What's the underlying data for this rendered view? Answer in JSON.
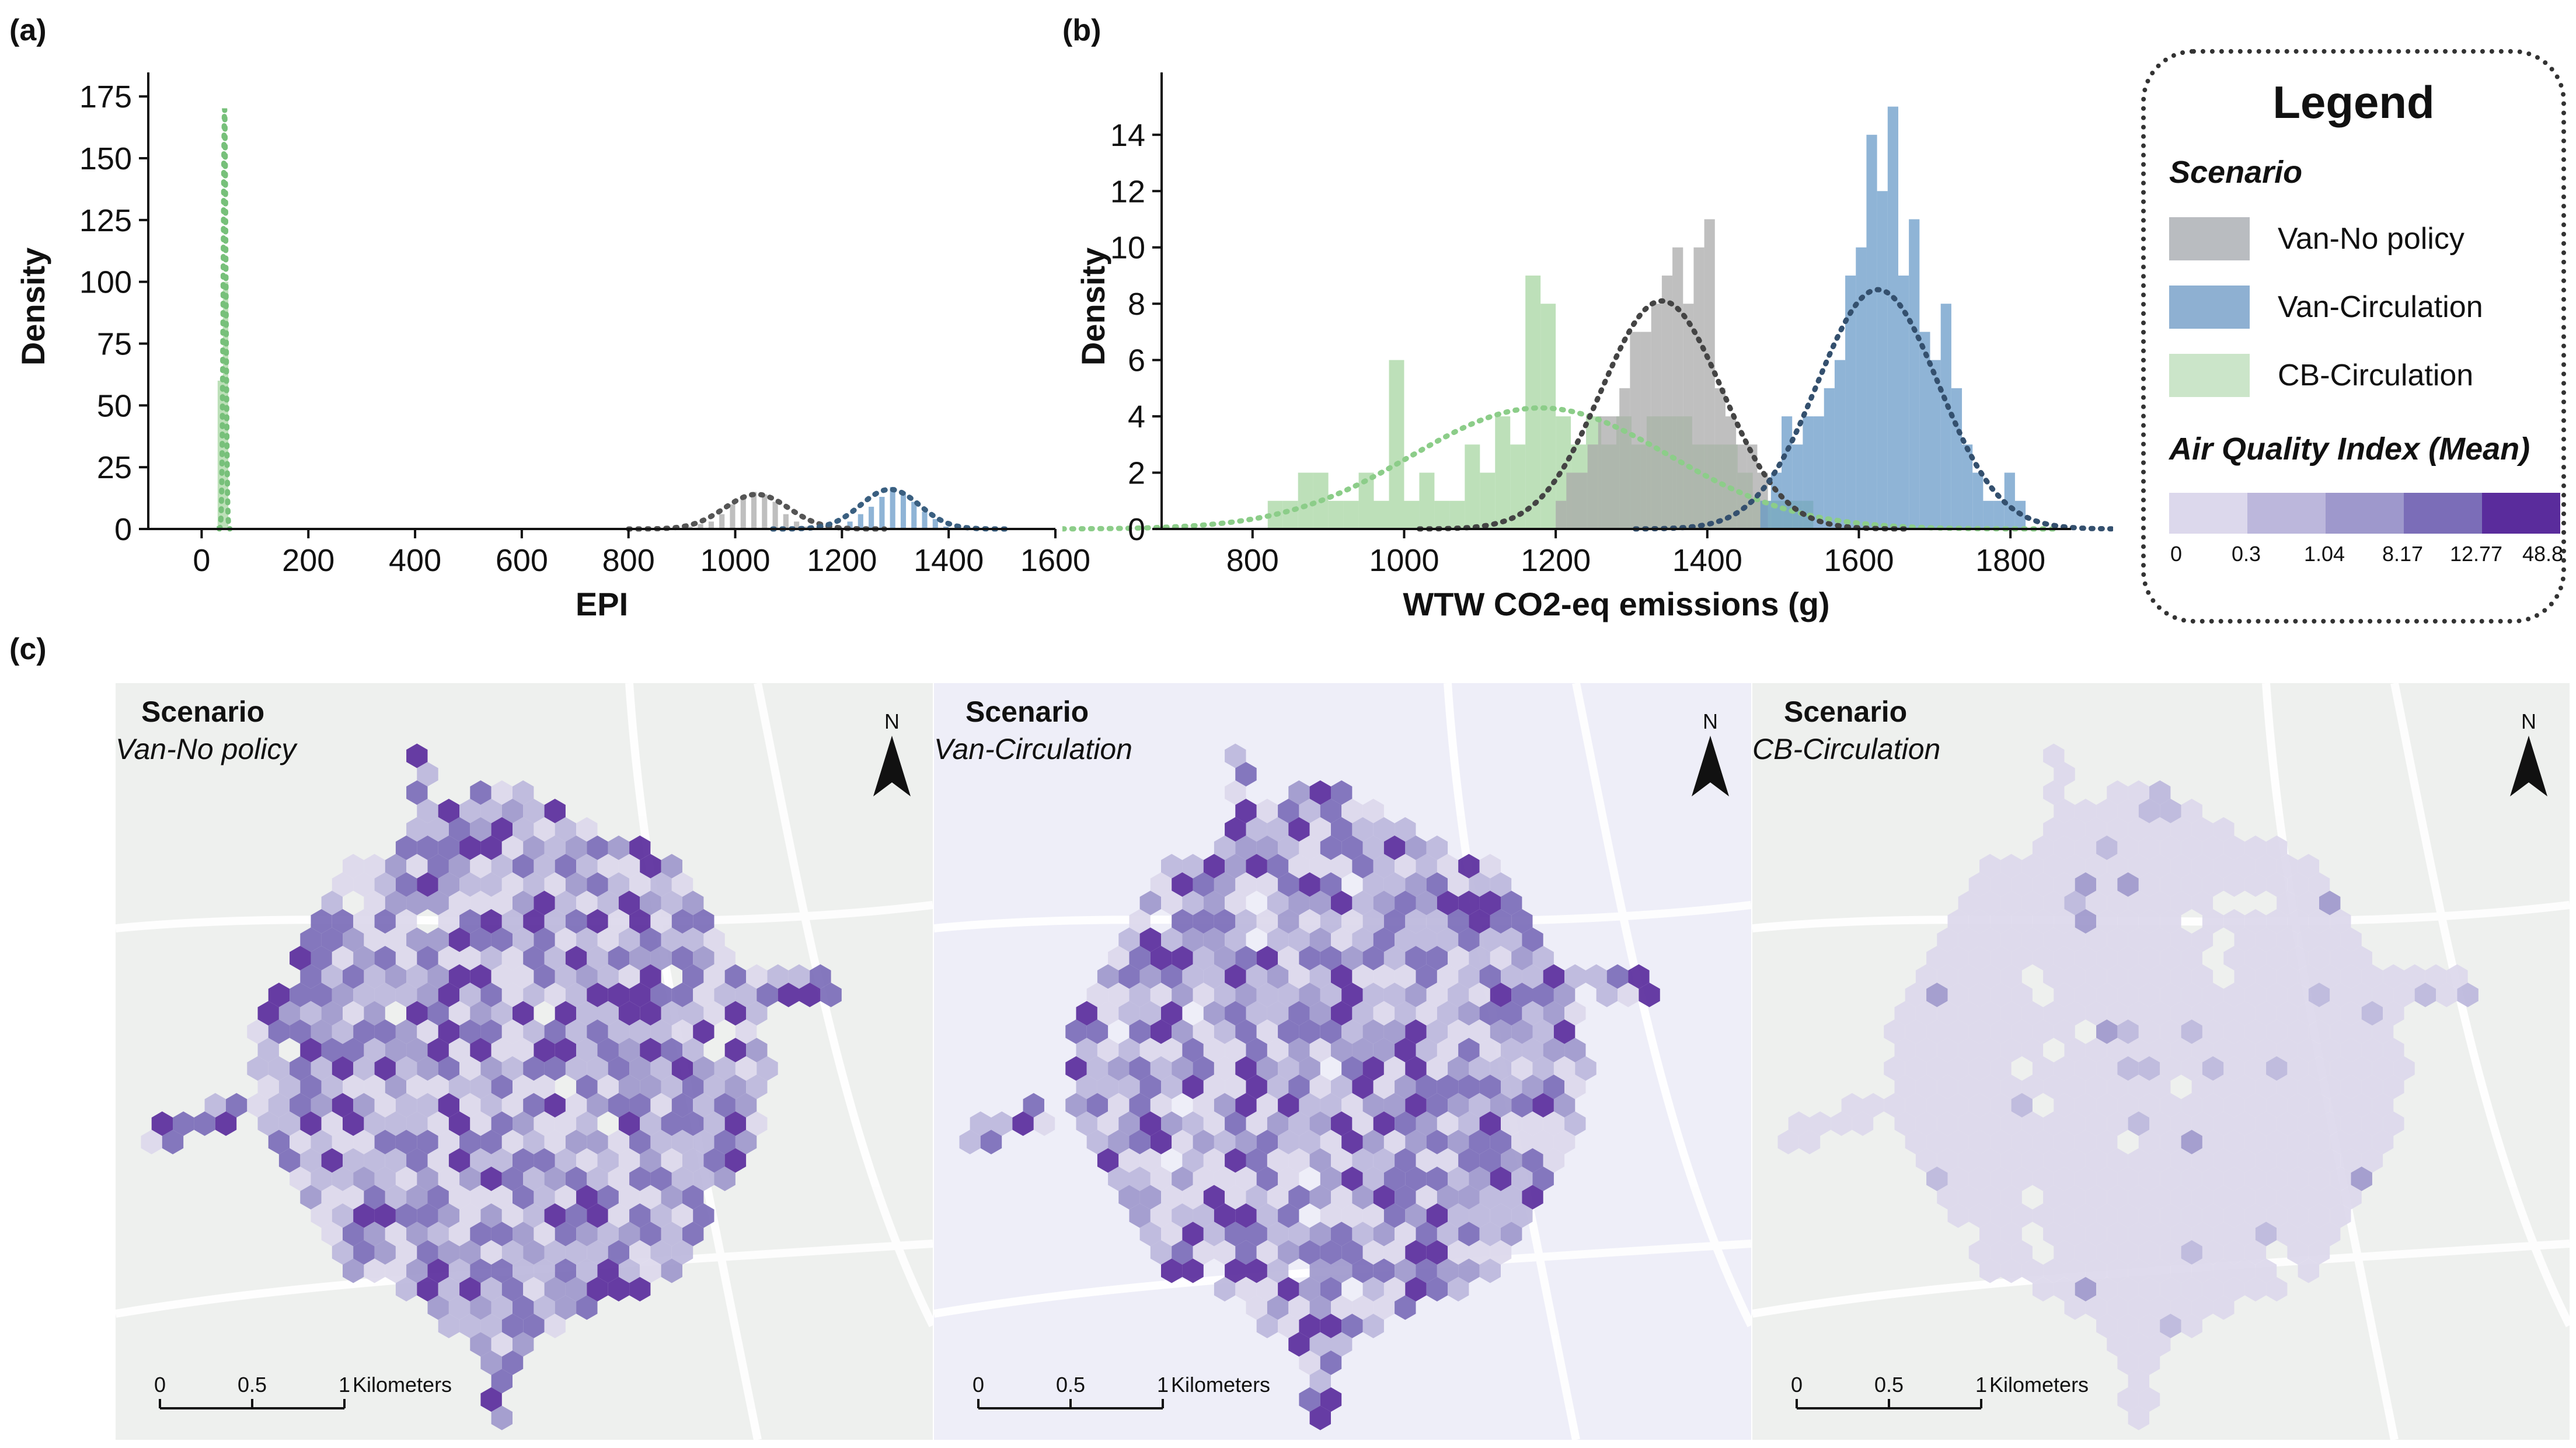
{
  "panels": {
    "a": "(a)",
    "b": "(b)",
    "c": "(c)"
  },
  "legend": {
    "title": "Legend",
    "scenario_heading": "Scenario",
    "items": [
      {
        "label": "Van-No policy",
        "color": "#b9bcc0"
      },
      {
        "label": "Van-Circulation",
        "color": "#8eb0d2"
      },
      {
        "label": "CB-Circulation",
        "color": "#cbe5c9"
      }
    ],
    "aqi_heading": "Air Quality Index (Mean)",
    "aqi_colors": [
      "#dcd8ec",
      "#bcb7dc",
      "#9e98cc",
      "#7b6db8",
      "#5a2c9c"
    ],
    "aqi_ticks": [
      "0",
      "0.3",
      "1.04",
      "8.17",
      "12.77",
      "48.8"
    ]
  },
  "chart_data": [
    {
      "id": "a",
      "type": "bar",
      "xlabel": "EPI",
      "ylabel": "Density",
      "xlim": [
        -100,
        1600
      ],
      "ylim": [
        0,
        180
      ],
      "xticks": [
        "0",
        "200",
        "400",
        "600",
        "800",
        "1000",
        "1200",
        "1400",
        "1600"
      ],
      "yticks": [
        "0",
        "25",
        "50",
        "75",
        "100",
        "125",
        "150",
        "175"
      ],
      "series": [
        {
          "name": "Van-No policy",
          "color": "#a9a9a9",
          "fit_color": "#555555",
          "bin_width": 10,
          "bins": [
            [
              910,
              1
            ],
            [
              930,
              2
            ],
            [
              950,
              3
            ],
            [
              970,
              6
            ],
            [
              990,
              10
            ],
            [
              1010,
              13
            ],
            [
              1030,
              15
            ],
            [
              1050,
              14
            ],
            [
              1070,
              11
            ],
            [
              1090,
              6
            ],
            [
              1110,
              3
            ],
            [
              1130,
              1
            ]
          ],
          "fit": {
            "mean": 1040,
            "sd": 60,
            "peak": 14
          }
        },
        {
          "name": "Van-Circulation",
          "color": "#6a9bc8",
          "fit_color": "#3a5f80",
          "bin_width": 10,
          "bins": [
            [
              1190,
              1
            ],
            [
              1210,
              3
            ],
            [
              1230,
              6
            ],
            [
              1250,
              9
            ],
            [
              1270,
              13
            ],
            [
              1290,
              17
            ],
            [
              1310,
              15
            ],
            [
              1330,
              11
            ],
            [
              1350,
              7
            ],
            [
              1370,
              4
            ],
            [
              1390,
              1
            ]
          ],
          "fit": {
            "mean": 1290,
            "sd": 55,
            "peak": 16
          }
        },
        {
          "name": "CB-Circulation",
          "color": "#a7d6a1",
          "fit_color": "#77c07a",
          "bin_width": 10,
          "bins": [
            [
              30,
              60
            ],
            [
              40,
              100
            ]
          ],
          "fit": {
            "mean": 43,
            "sd": 2.5,
            "peak": 170
          }
        }
      ]
    },
    {
      "id": "b",
      "type": "bar",
      "xlabel": "WTW CO2-eq emissions (g)",
      "ylabel": "Density",
      "xlim": [
        680,
        1880
      ],
      "ylim": [
        0,
        15.8
      ],
      "xticks": [
        "800",
        "1000",
        "1200",
        "1400",
        "1600",
        "1800"
      ],
      "yticks": [
        "0",
        "2",
        "4",
        "6",
        "8",
        "10",
        "12",
        "14"
      ],
      "series": [
        {
          "name": "CB-Circulation",
          "color": "#a7d6a1",
          "fit_color": "#8ccd89",
          "bin_width": 20,
          "bins": [
            [
              820,
              1
            ],
            [
              840,
              1
            ],
            [
              860,
              2
            ],
            [
              880,
              2
            ],
            [
              900,
              1
            ],
            [
              920,
              1
            ],
            [
              940,
              2
            ],
            [
              960,
              1
            ],
            [
              980,
              6
            ],
            [
              1000,
              1
            ],
            [
              1020,
              2
            ],
            [
              1040,
              1
            ],
            [
              1060,
              1
            ],
            [
              1080,
              3
            ],
            [
              1100,
              2
            ],
            [
              1120,
              4
            ],
            [
              1140,
              3
            ],
            [
              1160,
              9
            ],
            [
              1180,
              8
            ],
            [
              1200,
              4
            ],
            [
              1220,
              3
            ],
            [
              1240,
              4
            ],
            [
              1260,
              3
            ],
            [
              1280,
              4
            ],
            [
              1300,
              3
            ],
            [
              1320,
              4
            ],
            [
              1340,
              4
            ],
            [
              1360,
              4
            ],
            [
              1380,
              3
            ],
            [
              1400,
              3
            ],
            [
              1420,
              3
            ],
            [
              1440,
              2
            ],
            [
              1460,
              1
            ],
            [
              1480,
              1
            ],
            [
              1500,
              1
            ],
            [
              1520,
              1
            ]
          ],
          "fit": {
            "mean": 1180,
            "sd": 170,
            "peak": 4.3
          }
        },
        {
          "name": "Van-No policy",
          "color": "#a9a9a9",
          "fit_color": "#444444",
          "bin_width": 14,
          "bins": [
            [
              1200,
              1
            ],
            [
              1214,
              2
            ],
            [
              1228,
              2
            ],
            [
              1242,
              3
            ],
            [
              1256,
              4
            ],
            [
              1270,
              4
            ],
            [
              1284,
              5
            ],
            [
              1298,
              7
            ],
            [
              1312,
              7
            ],
            [
              1326,
              8
            ],
            [
              1340,
              9
            ],
            [
              1354,
              10
            ],
            [
              1368,
              8
            ],
            [
              1382,
              10
            ],
            [
              1396,
              11
            ],
            [
              1410,
              5
            ],
            [
              1424,
              4
            ],
            [
              1438,
              3
            ],
            [
              1452,
              3
            ],
            [
              1466,
              2
            ]
          ],
          "fit": {
            "mean": 1340,
            "sd": 80,
            "peak": 8.1
          }
        },
        {
          "name": "Van-Circulation",
          "color": "#6a9bc8",
          "fit_color": "#34506e",
          "bin_width": 14,
          "bins": [
            [
              1470,
              1
            ],
            [
              1484,
              2
            ],
            [
              1498,
              4
            ],
            [
              1512,
              3
            ],
            [
              1526,
              4
            ],
            [
              1540,
              4
            ],
            [
              1554,
              5
            ],
            [
              1568,
              6
            ],
            [
              1582,
              9
            ],
            [
              1596,
              10
            ],
            [
              1610,
              14
            ],
            [
              1624,
              12
            ],
            [
              1638,
              15
            ],
            [
              1652,
              9
            ],
            [
              1666,
              11
            ],
            [
              1680,
              7
            ],
            [
              1694,
              6
            ],
            [
              1708,
              8
            ],
            [
              1722,
              5
            ],
            [
              1736,
              3
            ],
            [
              1750,
              2
            ],
            [
              1764,
              1
            ],
            [
              1778,
              1
            ],
            [
              1792,
              2
            ],
            [
              1806,
              1
            ]
          ],
          "fit": {
            "mean": 1625,
            "sd": 80,
            "peak": 8.5
          }
        }
      ]
    },
    {
      "id": "c",
      "type": "heatmap",
      "series": [
        {
          "name": "Van-No policy",
          "level_dist": [
            0.22,
            0.22,
            0.18,
            0.22,
            0.16
          ]
        },
        {
          "name": "Van-Circulation",
          "level_dist": [
            0.24,
            0.24,
            0.17,
            0.2,
            0.15
          ]
        },
        {
          "name": "CB-Circulation",
          "level_dist": [
            0.94,
            0.045,
            0.015,
            0.0,
            0.0
          ]
        }
      ]
    }
  ],
  "maps": [
    {
      "scenario_label": "Scenario",
      "scenario_name": "Van-No policy",
      "north": "N",
      "scale_ticks": [
        "0",
        "0.5",
        "1"
      ],
      "scale_unit": "Kilometers"
    },
    {
      "scenario_label": "Scenario",
      "scenario_name": "Van-Circulation",
      "north": "N",
      "scale_ticks": [
        "0",
        "0.5",
        "1"
      ],
      "scale_unit": "Kilometers"
    },
    {
      "scenario_label": "Scenario",
      "scenario_name": "CB-Circulation",
      "north": "N",
      "scale_ticks": [
        "0",
        "0.5",
        "1"
      ],
      "scale_unit": "Kilometers"
    }
  ]
}
